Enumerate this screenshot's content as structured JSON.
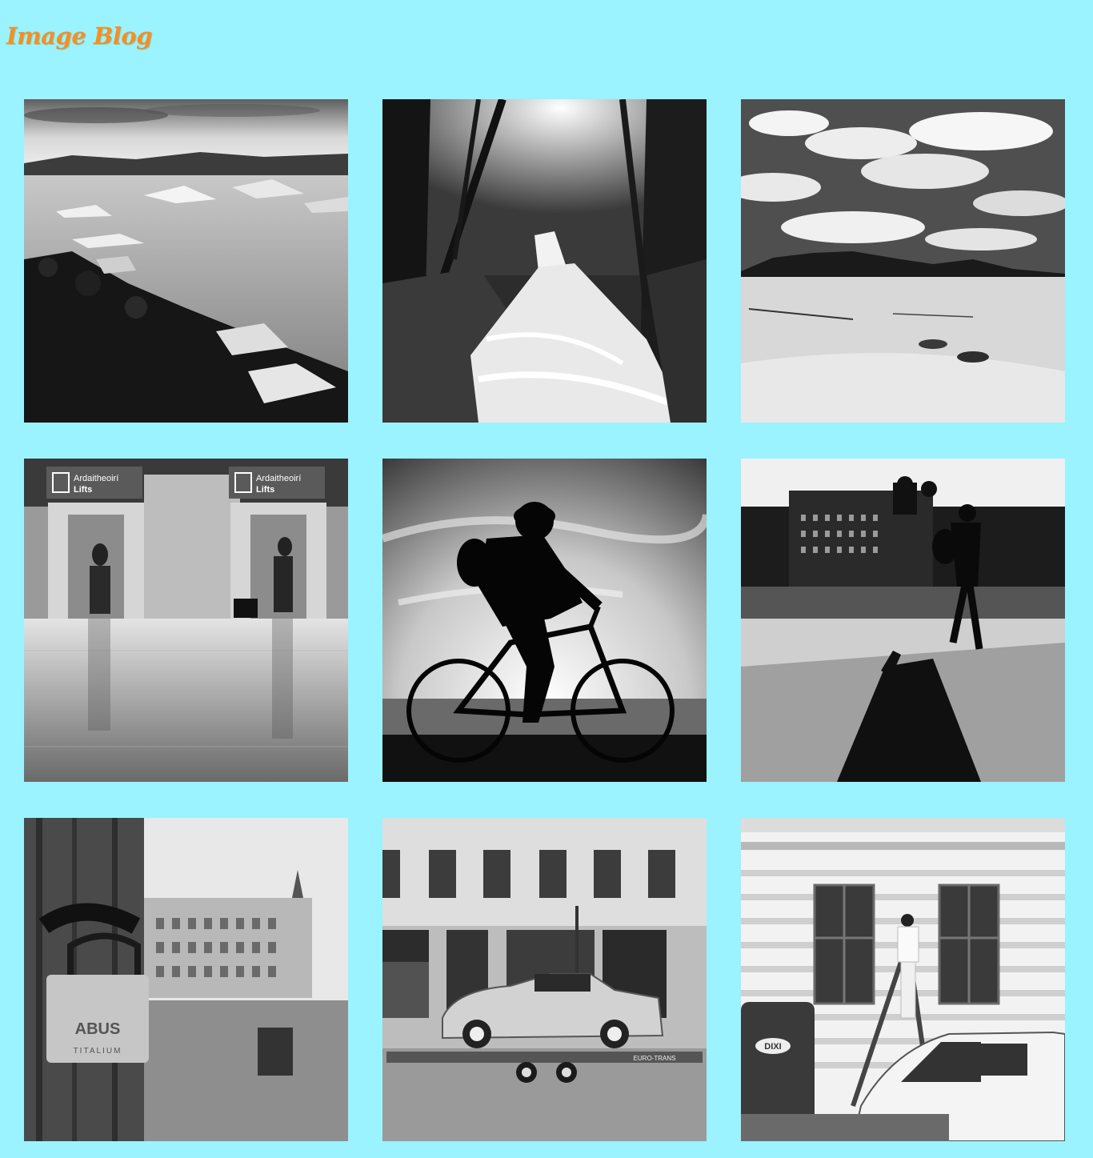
{
  "header": {
    "title": "Image Blog"
  },
  "gallery": {
    "images": [
      {
        "subject": "glacier-lagoon"
      },
      {
        "subject": "forest-waterfall"
      },
      {
        "subject": "desert-dunes"
      },
      {
        "subject": "airport-lifts",
        "signs": [
          "Ardaitheoirí",
          "Lifts",
          "Ardaitheoirí",
          "Lifts"
        ]
      },
      {
        "subject": "cyclist-silhouette"
      },
      {
        "subject": "pedestrian-waterfront"
      },
      {
        "subject": "padlock-square",
        "padlock_brand": "ABUS",
        "padlock_model": "TITALIUM"
      },
      {
        "subject": "classic-car-trailer",
        "trailer_text": "EURO-TRANS"
      },
      {
        "subject": "painter-ladder",
        "toilet_brand": "DIXI"
      }
    ]
  },
  "colors": {
    "background": "#9af3fe",
    "title": "#f68f20"
  }
}
